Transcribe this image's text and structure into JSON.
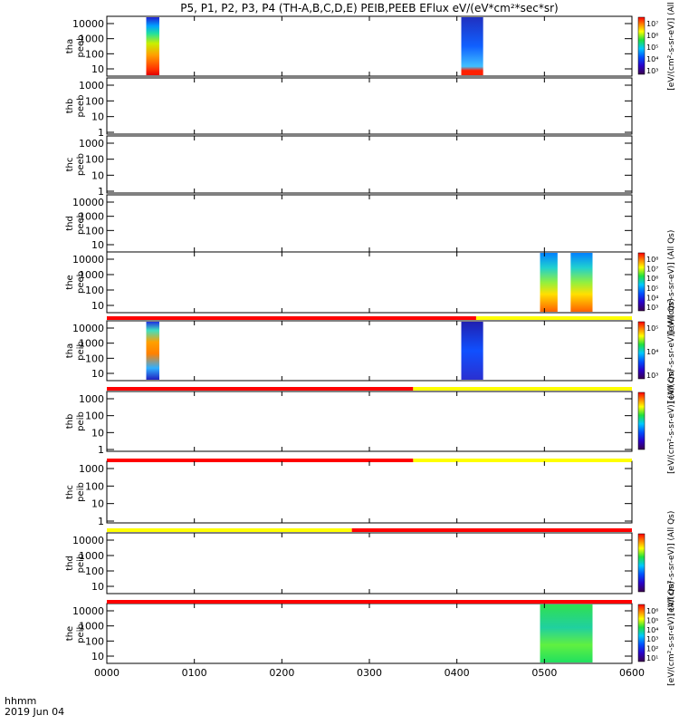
{
  "chart_data": {
    "type": "heatmap",
    "title": "P5, P1, P2, P3, P4 (TH-A,B,C,D,E) PEIB,PEEB EFlux eV/(eV*cm²*sec*sr)",
    "x_ticks": [
      "0000",
      "0100",
      "0200",
      "0300",
      "0400",
      "0500",
      "0600"
    ],
    "x_range_hours": [
      0,
      6
    ],
    "footer": {
      "unit": "hhmm",
      "date": "2019 Jun 04"
    },
    "panels": [
      {
        "probe": "tha",
        "instrument": "peeb",
        "yscale": "log",
        "yticks": [
          "10",
          "100",
          "1000",
          "10000"
        ],
        "colorbar": {
          "label": "[eV/(cm²-s-sr-eV)] (All",
          "ticks": [
            "10³",
            "10⁴",
            "10⁵",
            "10⁶",
            "10⁷"
          ]
        },
        "data_intervals_hours": [
          [
            0.45,
            0.6
          ],
          [
            4.05,
            4.3
          ]
        ]
      },
      {
        "probe": "thb",
        "instrument": "peeb",
        "yscale": "log",
        "yticks": [
          "1",
          "10",
          "100",
          "1000"
        ],
        "data_intervals_hours": []
      },
      {
        "probe": "thc",
        "instrument": "peeb",
        "yscale": "log",
        "yticks": [
          "1",
          "10",
          "100",
          "1000"
        ],
        "data_intervals_hours": []
      },
      {
        "probe": "thd",
        "instrument": "peeb",
        "yscale": "log",
        "yticks": [
          "10",
          "100",
          "1000",
          "10000"
        ],
        "data_intervals_hours": []
      },
      {
        "probe": "the",
        "instrument": "peeb",
        "yscale": "log",
        "yticks": [
          "10",
          "100",
          "1000",
          "10000"
        ],
        "colorbar": {
          "label": "[eV/(cm²-s-sr-eV)] (All Qs)",
          "ticks": [
            "10³",
            "10⁴",
            "10⁵",
            "10⁶",
            "10⁷",
            "10⁸"
          ]
        },
        "data_intervals_hours": [
          [
            4.95,
            5.15
          ],
          [
            5.3,
            5.55
          ]
        ]
      },
      {
        "probe": "tha",
        "instrument": "peib",
        "yscale": "log",
        "yticks": [
          "10",
          "100",
          "1000",
          "10000"
        ],
        "colorbar": {
          "label": "[eV/(cm²-s-sr-eV)] (All Qs)",
          "ticks": [
            "10³",
            "10⁴",
            "10⁵"
          ]
        },
        "data_intervals_hours": [
          [
            0.45,
            0.6
          ],
          [
            4.05,
            4.3
          ]
        ]
      },
      {
        "probe": "thb",
        "instrument": "peib",
        "yscale": "log",
        "yticks": [
          "1",
          "10",
          "100",
          "1000"
        ],
        "colorbar": {
          "label": "[eV/(cm²-s-sr-eV)] (All Qs)",
          "ticks": []
        },
        "data_intervals_hours": []
      },
      {
        "probe": "thc",
        "instrument": "peib",
        "yscale": "log",
        "yticks": [
          "1",
          "10",
          "100",
          "1000"
        ],
        "data_intervals_hours": []
      },
      {
        "probe": "thd",
        "instrument": "peib",
        "yscale": "log",
        "yticks": [
          "10",
          "100",
          "1000",
          "10000"
        ],
        "colorbar": {
          "label": "[eV/(cm²-s-sr-eV)] (All Qs)",
          "ticks": []
        },
        "data_intervals_hours": []
      },
      {
        "probe": "the",
        "instrument": "peib",
        "yscale": "log",
        "yticks": [
          "10",
          "100",
          "1000",
          "10000"
        ],
        "colorbar": {
          "label": "[eV/(cm²-s-sr-eV)] (All Qs)",
          "ticks": [
            "10¹",
            "10²",
            "10³",
            "10⁴",
            "10⁵",
            "10⁶"
          ]
        },
        "data_intervals_hours": [
          [
            4.95,
            5.55
          ]
        ]
      }
    ],
    "mode_bars": [
      {
        "after_panel": 4,
        "segments": [
          {
            "color": "#ff0000",
            "start": 0,
            "end": 4.22
          },
          {
            "color": "#ffff00",
            "start": 4.22,
            "end": 6
          }
        ]
      },
      {
        "after_panel": 5,
        "segments": [
          {
            "color": "#ff0000",
            "start": 0,
            "end": 3.5
          },
          {
            "color": "#ffff00",
            "start": 3.5,
            "end": 6
          }
        ]
      },
      {
        "after_panel": 6,
        "segments": [
          {
            "color": "#ff0000",
            "start": 0,
            "end": 3.5
          },
          {
            "color": "#ffff00",
            "start": 3.5,
            "end": 6
          }
        ]
      },
      {
        "after_panel": 7,
        "segments": [
          {
            "color": "#ffff00",
            "start": 0,
            "end": 2.8
          },
          {
            "color": "#ff0000",
            "start": 2.8,
            "end": 6
          }
        ]
      },
      {
        "after_panel": 8,
        "segments": [
          {
            "color": "#ff0000",
            "start": 0,
            "end": 6
          }
        ]
      }
    ]
  }
}
